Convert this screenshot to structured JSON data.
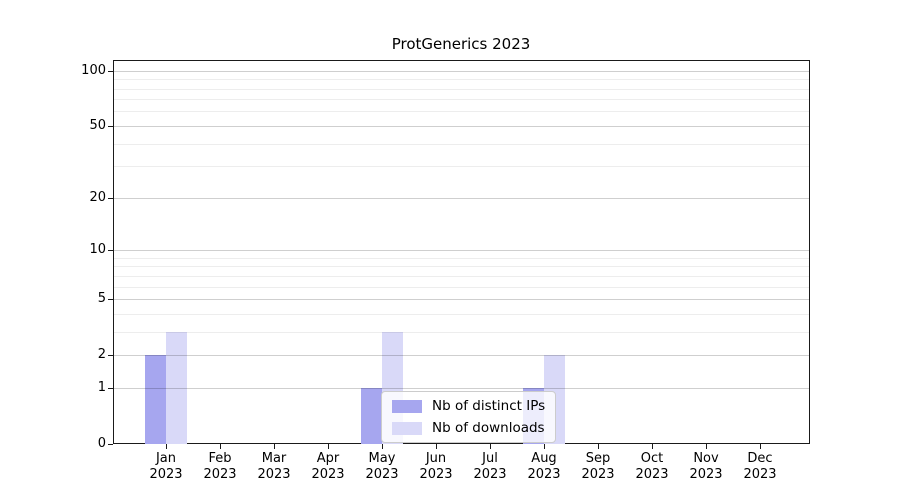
{
  "chart_data": {
    "type": "bar",
    "title": "ProtGenerics 2023",
    "x_categories": [
      "Jan",
      "Feb",
      "Mar",
      "Apr",
      "May",
      "Jun",
      "Jul",
      "Aug",
      "Sep",
      "Oct",
      "Nov",
      "Dec"
    ],
    "x_year": "2023",
    "series": [
      {
        "name": "Nb of distinct IPs",
        "color": "#a6a6ef",
        "values": [
          2,
          0,
          0,
          0,
          1,
          0,
          0,
          1,
          0,
          0,
          0,
          0
        ]
      },
      {
        "name": "Nb of downloads",
        "color": "#d9d9f8",
        "values": [
          3,
          0,
          0,
          0,
          3,
          0,
          0,
          2,
          0,
          0,
          0,
          0
        ]
      }
    ],
    "y_scale": "log1p",
    "y_ticks": [
      0,
      1,
      2,
      5,
      10,
      20,
      50,
      100
    ],
    "y_minor_gridlines": [
      3,
      4,
      6,
      7,
      8,
      9,
      30,
      40,
      60,
      70,
      80,
      90
    ],
    "ylim": [
      0,
      114
    ],
    "grid": "horizontal",
    "legend_position": "inside-lower-center"
  },
  "colors": {
    "bar_distinct_ips": "#a6a6ef",
    "bar_downloads": "#d9d9f8",
    "major_grid": "rgba(0,0,0,0.19)",
    "minor_grid": "rgba(0,0,0,0.07)",
    "axis": "#1a1a1a",
    "text": "#000000",
    "background": "#ffffff"
  }
}
